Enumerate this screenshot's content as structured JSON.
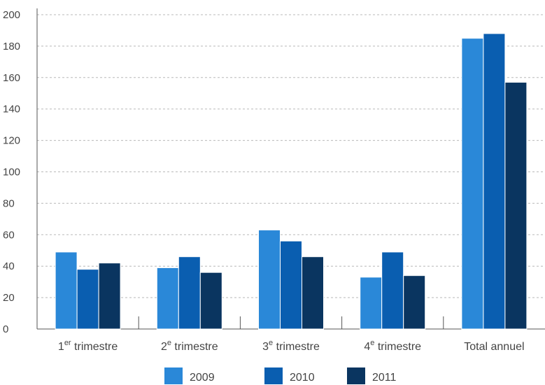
{
  "chart_data": {
    "type": "bar",
    "categories": [
      {
        "base": "1",
        "sup": "er",
        "rest": " trimestre"
      },
      {
        "base": "2",
        "sup": "e",
        "rest": " trimestre"
      },
      {
        "base": "3",
        "sup": "e",
        "rest": " trimestre"
      },
      {
        "base": "4",
        "sup": "e",
        "rest": " trimestre"
      },
      {
        "base": "Total annuel",
        "sup": "",
        "rest": ""
      }
    ],
    "series": [
      {
        "name": "2009",
        "color": "#2a88d8",
        "values": [
          49,
          39,
          63,
          33,
          185
        ]
      },
      {
        "name": "2010",
        "color": "#0a5eb0",
        "values": [
          38,
          46,
          56,
          49,
          188
        ]
      },
      {
        "name": "2011",
        "color": "#0a3560",
        "values": [
          42,
          36,
          46,
          34,
          157
        ]
      }
    ],
    "ylim": [
      0,
      200
    ],
    "yticks": [
      "0",
      "20",
      "40",
      "60",
      "80",
      "100",
      "120",
      "140",
      "160",
      "180",
      "200"
    ],
    "grid": true,
    "legend_position": "bottom"
  }
}
